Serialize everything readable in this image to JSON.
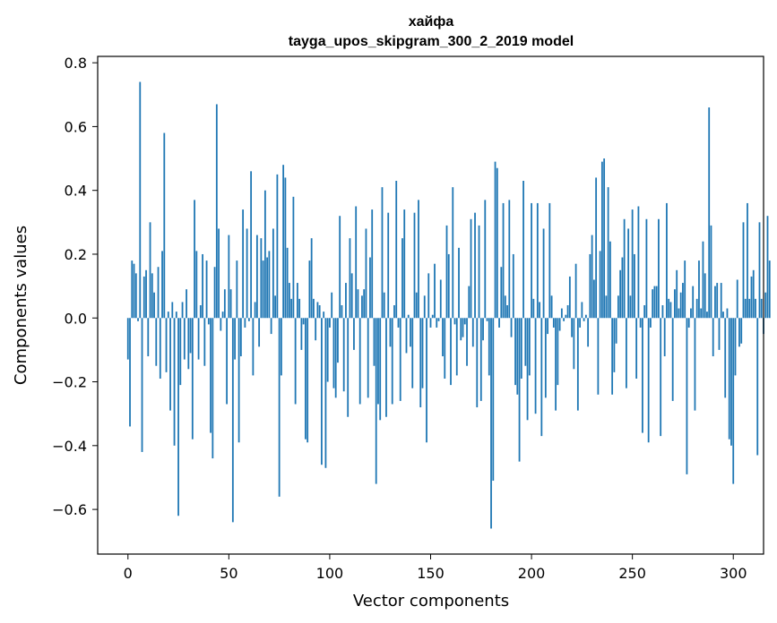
{
  "chart_data": {
    "type": "bar",
    "title": "хайфа",
    "subtitle": "tayga_upos_skipgram_300_2_2019 model",
    "xlabel": "Vector components",
    "ylabel": "Components values",
    "xlim": [
      -15,
      315
    ],
    "ylim": [
      -0.74,
      0.82
    ],
    "xticks": [
      0,
      50,
      100,
      150,
      200,
      250,
      300
    ],
    "yticks": [
      -0.6,
      -0.4,
      -0.2,
      0.0,
      0.2,
      0.4,
      0.6,
      0.8
    ],
    "ytick_labels": [
      "−0.6",
      "−0.4",
      "−0.2",
      "0.0",
      "0.2",
      "0.4",
      "0.6",
      "0.8"
    ],
    "bar_color": "#1f77b4",
    "grid": false,
    "values": [
      -0.13,
      -0.34,
      0.18,
      0.17,
      0.14,
      -0.01,
      0.74,
      -0.42,
      0.13,
      0.15,
      -0.12,
      0.3,
      0.14,
      0.08,
      -0.15,
      0.16,
      -0.19,
      0.21,
      0.58,
      -0.17,
      0.02,
      -0.29,
      0.05,
      -0.4,
      0.02,
      -0.62,
      -0.21,
      0.05,
      -0.13,
      0.09,
      -0.16,
      -0.11,
      -0.38,
      0.37,
      0.21,
      -0.13,
      0.04,
      0.2,
      -0.15,
      0.18,
      -0.02,
      -0.36,
      -0.44,
      0.16,
      0.67,
      0.28,
      -0.04,
      0.02,
      0.09,
      -0.27,
      0.26,
      0.09,
      -0.64,
      -0.13,
      0.18,
      -0.39,
      -0.12,
      0.34,
      -0.03,
      0.28,
      -0.01,
      0.46,
      -0.18,
      0.05,
      0.26,
      -0.09,
      0.25,
      0.18,
      0.4,
      0.19,
      0.21,
      -0.05,
      0.28,
      0.07,
      0.45,
      -0.56,
      -0.18,
      0.48,
      0.44,
      0.22,
      0.11,
      0.06,
      0.38,
      -0.27,
      0.11,
      0.06,
      -0.1,
      -0.02,
      -0.38,
      -0.39,
      0.18,
      0.25,
      0.06,
      -0.07,
      0.05,
      0.04,
      -0.46,
      0.02,
      -0.47,
      -0.2,
      -0.03,
      0.08,
      -0.22,
      -0.25,
      -0.14,
      0.32,
      0.04,
      -0.23,
      0.11,
      -0.31,
      0.25,
      0.14,
      -0.1,
      0.35,
      0.09,
      -0.27,
      0.07,
      0.09,
      0.28,
      -0.25,
      0.19,
      0.34,
      -0.15,
      -0.52,
      -0.27,
      -0.32,
      0.41,
      0.08,
      -0.31,
      0.33,
      -0.09,
      -0.27,
      0.04,
      0.43,
      -0.03,
      -0.26,
      0.25,
      0.34,
      -0.11,
      0.01,
      -0.09,
      -0.22,
      0.33,
      0.08,
      0.37,
      -0.28,
      -0.22,
      0.07,
      -0.39,
      0.14,
      -0.03,
      0.01,
      0.17,
      -0.03,
      -0.01,
      0.12,
      -0.12,
      -0.19,
      0.29,
      0.2,
      -0.21,
      0.41,
      -0.02,
      -0.18,
      0.22,
      -0.07,
      -0.06,
      -0.02,
      -0.15,
      0.1,
      0.31,
      -0.09,
      0.33,
      -0.28,
      0.29,
      -0.26,
      -0.07,
      0.37,
      -0.01,
      -0.18,
      -0.66,
      -0.51,
      0.49,
      0.47,
      -0.03,
      0.16,
      0.36,
      0.07,
      0.04,
      0.37,
      -0.06,
      0.2,
      -0.21,
      -0.24,
      -0.45,
      -0.19,
      0.43,
      -0.15,
      -0.32,
      -0.18,
      0.36,
      0.06,
      -0.3,
      0.36,
      0.05,
      -0.37,
      0.28,
      -0.25,
      -0.05,
      0.36,
      0.07,
      -0.03,
      -0.29,
      -0.21,
      -0.04,
      0.03,
      -0.01,
      0.01,
      0.04,
      0.13,
      -0.06,
      -0.16,
      0.17,
      -0.29,
      -0.03,
      0.05,
      -0.01,
      0.01,
      -0.09,
      0.2,
      0.26,
      0.12,
      0.44,
      -0.24,
      0.21,
      0.49,
      0.5,
      0.07,
      0.41,
      0.24,
      -0.24,
      -0.17,
      -0.08,
      0.07,
      0.15,
      0.19,
      0.31,
      -0.22,
      0.28,
      0.07,
      0.34,
      0.2,
      -0.19,
      0.35,
      -0.03,
      -0.36,
      0.04,
      0.31,
      -0.39,
      -0.03,
      0.09,
      0.1,
      0.1,
      0.31,
      -0.37,
      0.04,
      -0.12,
      0.36,
      0.06,
      0.05,
      -0.26,
      0.09,
      0.15,
      0.03,
      0.08,
      0.11,
      0.18,
      -0.49,
      -0.03,
      0.03,
      0.1,
      -0.29,
      0.06,
      0.18,
      0.03,
      0.24,
      0.14,
      0.02,
      0.66,
      0.29,
      -0.12,
      0.1,
      0.11,
      -0.1,
      0.11,
      0.02,
      -0.25,
      0.03,
      -0.38,
      -0.4,
      -0.52,
      -0.18,
      0.12,
      -0.09,
      -0.08,
      0.3,
      0.06,
      0.36,
      0.06,
      0.13,
      0.15,
      0.06,
      -0.43,
      0.3,
      0.06,
      -0.05,
      0.08,
      0.32,
      0.18
    ]
  }
}
